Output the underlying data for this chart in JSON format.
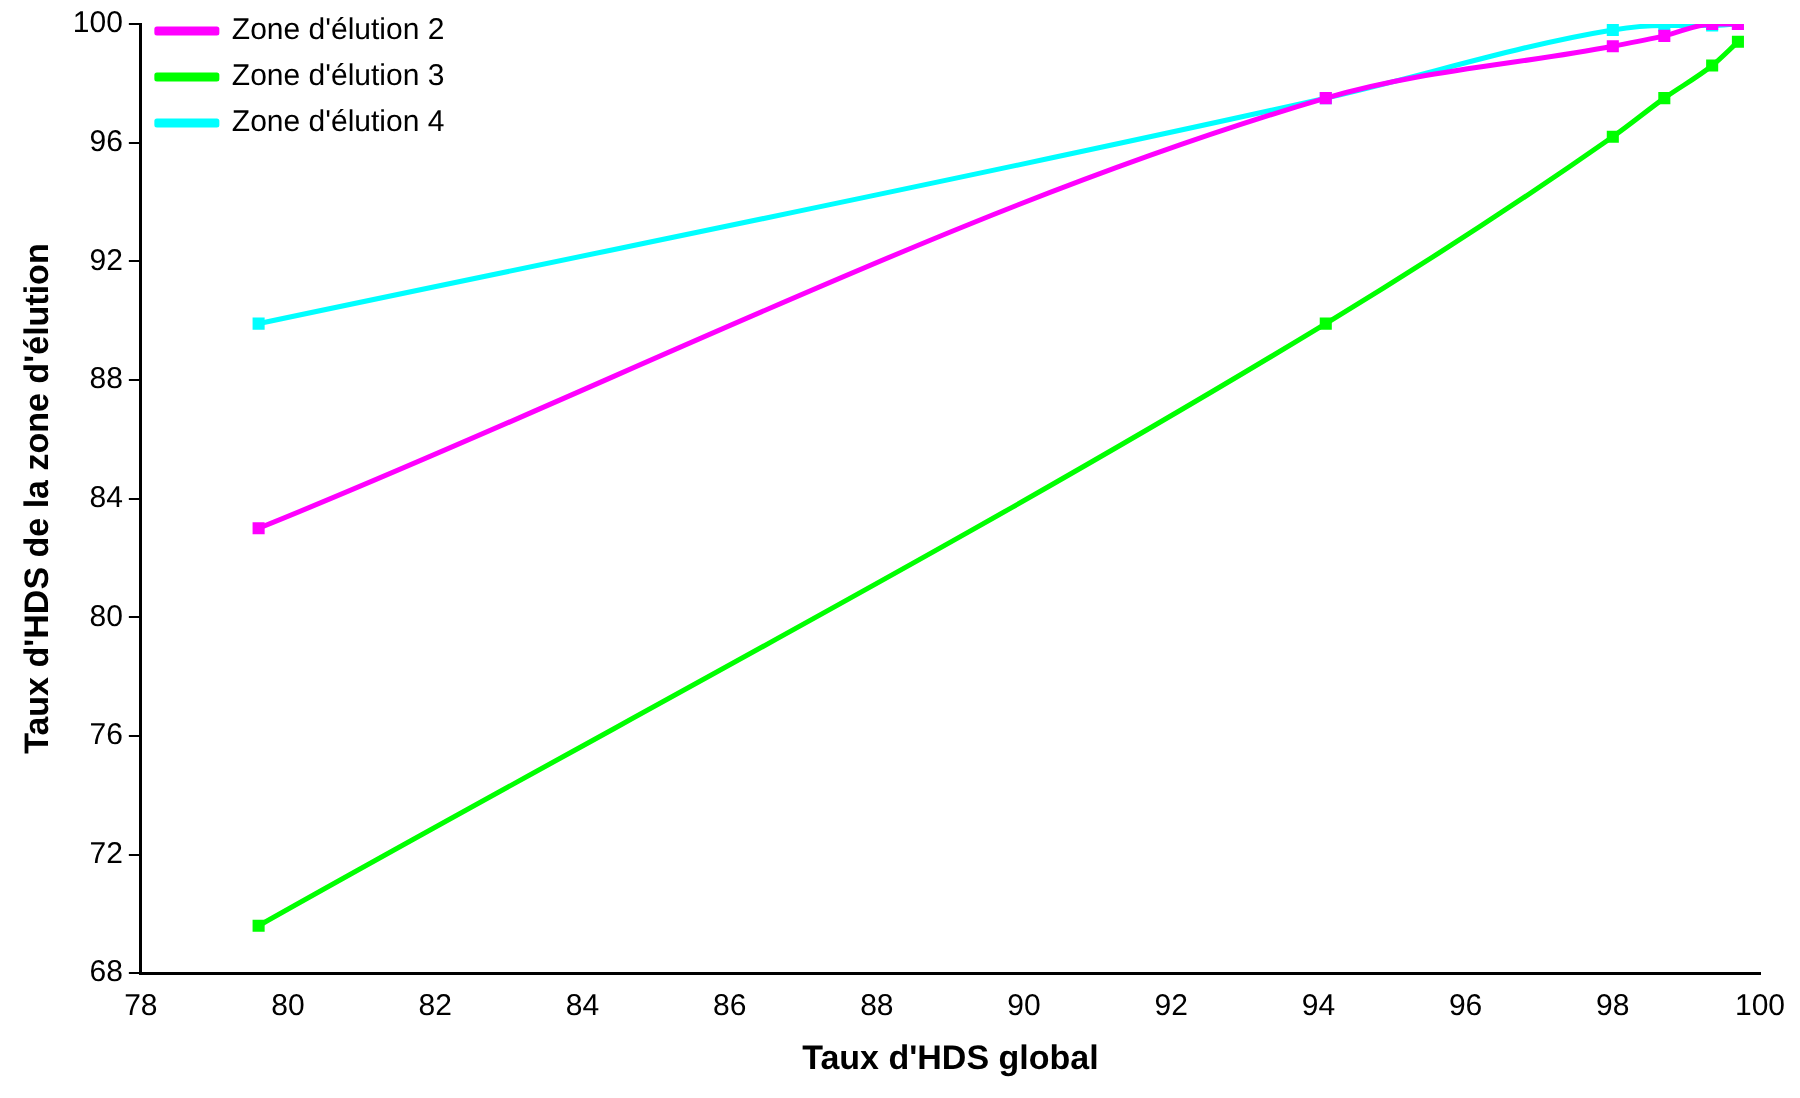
{
  "chart_data": {
    "type": "line",
    "xlabel": "Taux d'HDS global",
    "ylabel": "Taux d'HDS de la zone d'élution",
    "x": [
      79.6,
      94.1,
      98.0,
      98.7,
      99.35,
      99.7
    ],
    "series": [
      {
        "name": "Zone d'élution 2",
        "color": "#ff00ff",
        "values": [
          83.0,
          97.5,
          99.25,
          99.6,
          100,
          100
        ]
      },
      {
        "name": "Zone d'élution 3",
        "color": "#00ff00",
        "values": [
          69.6,
          89.9,
          96.2,
          97.5,
          98.6,
          99.4
        ]
      },
      {
        "name": "Zone d'élution 4",
        "color": "#00ffff",
        "values": [
          89.9,
          97.5,
          99.8,
          99.95,
          99.95,
          100
        ]
      }
    ],
    "xlim": [
      78,
      100
    ],
    "xticks": [
      78,
      80,
      82,
      84,
      86,
      88,
      90,
      92,
      94,
      96,
      98,
      100
    ],
    "ylim": [
      68,
      100
    ],
    "yticks": [
      68,
      72,
      76,
      80,
      84,
      88,
      92,
      96,
      100
    ],
    "legend": "top left",
    "marker": "square",
    "grid": false
  }
}
